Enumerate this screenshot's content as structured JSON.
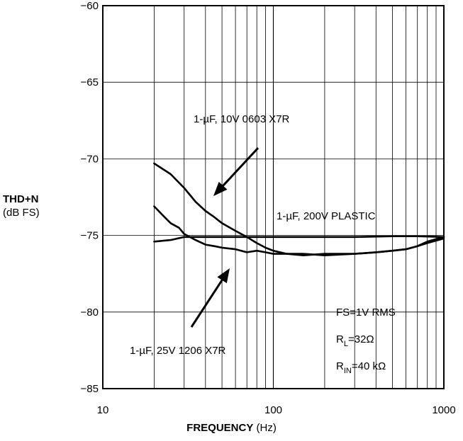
{
  "chart_data": {
    "type": "line",
    "ylabel": {
      "main": "THD+N",
      "unit": "(dB FS)"
    },
    "xlabel": {
      "main": "FREQUENCY",
      "unit": "(Hz)"
    },
    "x_scale": "log",
    "xlim": [
      10,
      1000
    ],
    "ylim": [
      -85,
      -60
    ],
    "x_ticks": [
      10,
      100,
      1000
    ],
    "x_tick_labels": [
      "10",
      "100",
      "1000"
    ],
    "y_ticks": [
      -60,
      -65,
      -70,
      -75,
      -80,
      -85
    ],
    "y_tick_labels": [
      "−60",
      "−65",
      "−70",
      "−75",
      "−80",
      "−85"
    ],
    "grid": true,
    "series": [
      {
        "name": "1-µF, 10V 0603 X7R",
        "x": [
          20,
          25,
          30,
          35,
          40,
          45,
          50,
          60,
          70,
          80,
          90,
          100,
          120,
          150,
          200,
          300,
          400,
          500,
          600,
          700,
          800,
          1000
        ],
        "y": [
          -70.3,
          -71.0,
          -71.9,
          -72.8,
          -73.4,
          -73.8,
          -74.2,
          -74.7,
          -75.1,
          -75.5,
          -75.8,
          -76.0,
          -76.2,
          -76.3,
          -76.2,
          -76.2,
          -76.1,
          -76.0,
          -75.9,
          -75.7,
          -75.4,
          -75.1
        ]
      },
      {
        "name": "1-µF, 200V PLASTIC",
        "x": [
          20,
          25,
          30,
          40,
          50,
          70,
          100,
          200,
          300,
          500,
          700,
          1000
        ],
        "y": [
          -75.4,
          -75.3,
          -75.1,
          -75.1,
          -75.1,
          -75.1,
          -75.1,
          -75.1,
          -75.1,
          -75.05,
          -75.05,
          -75.1
        ]
      },
      {
        "name": "1-µF, 25V 1206 X7R",
        "x": [
          20,
          23,
          25,
          28,
          30,
          35,
          40,
          45,
          50,
          60,
          70,
          80,
          90,
          100,
          120,
          150,
          200,
          300,
          400,
          500,
          600,
          700,
          800,
          1000
        ],
        "y": [
          -73.1,
          -73.8,
          -74.2,
          -74.5,
          -74.9,
          -75.3,
          -75.6,
          -75.7,
          -75.8,
          -75.9,
          -76.1,
          -76.0,
          -76.1,
          -76.2,
          -76.2,
          -76.2,
          -76.3,
          -76.2,
          -76.1,
          -76.0,
          -75.9,
          -75.7,
          -75.5,
          -75.2
        ]
      }
    ],
    "annotations": {
      "label_10v": "1-µF, 10V 0603 X7R",
      "label_200v": "1-µF, 200V PLASTIC",
      "label_25v": "1-µF, 25V 1206 X7R",
      "fs": "FS=1V RMS",
      "rl_main": "R",
      "rl_sub": "L",
      "rl_val": "=32Ω",
      "rin_main": "R",
      "rin_sub": "IN",
      "rin_val": "=40 kΩ"
    }
  }
}
